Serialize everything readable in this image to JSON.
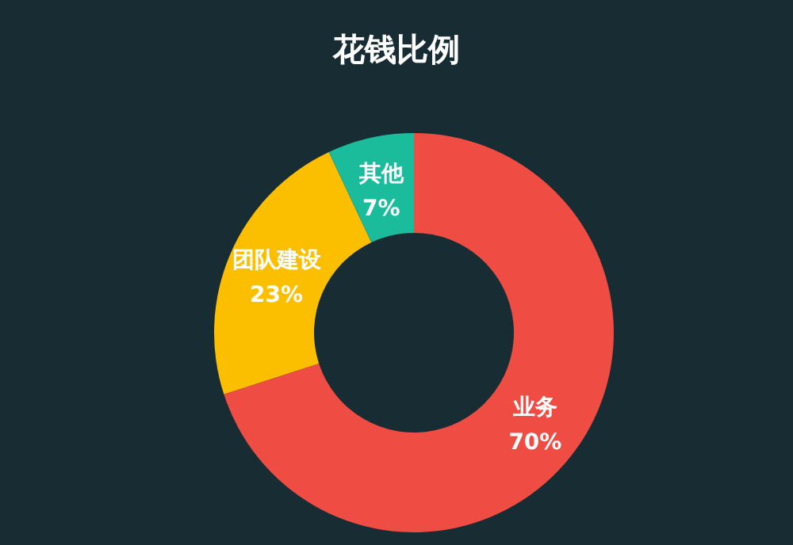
{
  "chart_data": {
    "type": "donut",
    "title": "花钱比例",
    "categories": [
      "业务",
      "团队建设",
      "其他"
    ],
    "values": [
      70,
      23,
      7
    ],
    "value_labels": [
      "70%",
      "23%",
      "7%"
    ],
    "colors": [
      "#ef4c43",
      "#fcbf00",
      "#1abc9c"
    ],
    "legend": false
  }
}
